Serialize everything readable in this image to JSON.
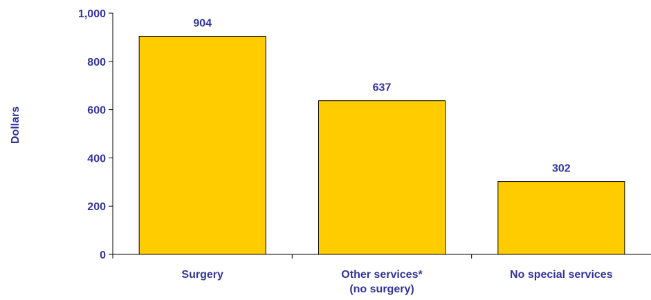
{
  "chart_data": {
    "type": "bar",
    "categories": [
      [
        "Surgery"
      ],
      [
        "Other services*",
        "(no surgery)"
      ],
      [
        "No special services"
      ]
    ],
    "values": [
      904,
      637,
      302
    ],
    "data_labels": [
      "904",
      "637",
      "302"
    ],
    "xlabel": "",
    "ylabel": "Dollars",
    "ylim": [
      0,
      1000
    ],
    "yticks": [
      0,
      200,
      400,
      600,
      800,
      1000
    ],
    "ytick_labels": [
      "0",
      "200",
      "400",
      "600",
      "800",
      "1,000"
    ],
    "grid": false,
    "legend": "none",
    "colors": {
      "bar_fill": "#FFCC00",
      "bar_stroke": "#000000",
      "text": "#333399",
      "axis": "#000000"
    }
  }
}
